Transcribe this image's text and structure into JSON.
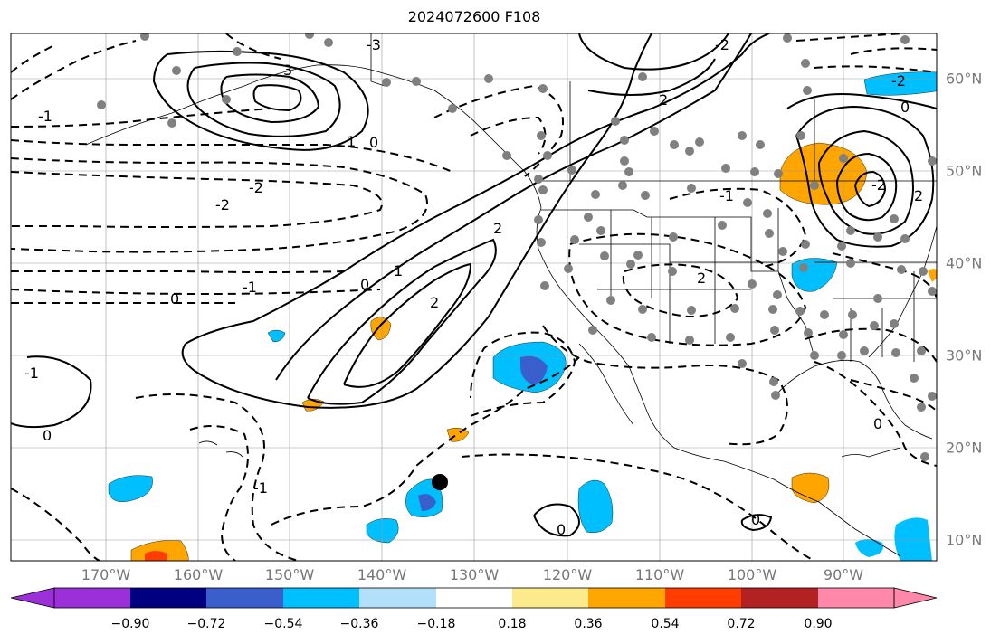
{
  "title": "2024072600 F108",
  "longitude_labels": [
    "170°W",
    "160°W",
    "150°W",
    "140°W",
    "130°W",
    "120°W",
    "110°W",
    "100°W",
    "90°W"
  ],
  "latitude_labels": [
    "60°N",
    "50°N",
    "40°N",
    "30°N",
    "20°N",
    "10°N"
  ],
  "colorbar": {
    "ticks": [
      "−0.90",
      "−0.72",
      "−0.54",
      "−0.36",
      "−0.18",
      "0.18",
      "0.36",
      "0.54",
      "0.72",
      "0.90"
    ],
    "colors": [
      "#9b30d9",
      "#000080",
      "#3a5fcd",
      "#00bfff",
      "#b2e0fb",
      "#ffffff",
      "#fdea8a",
      "#ffa500",
      "#ff3d00",
      "#b22222",
      "#ff88aa"
    ]
  },
  "contour_labels": [
    "-3",
    "-2",
    "-2",
    "-2",
    "-1",
    "-1",
    "-1",
    "0",
    "0",
    "0",
    "1",
    "2",
    "2",
    "3",
    "-2",
    "-1",
    "2",
    "2",
    "0",
    "1",
    "0",
    "0",
    "-1",
    "-2",
    "2",
    "0",
    "0"
  ],
  "fill_colors": {
    "pos_low": "#ffa500",
    "pos_mid": "#ff3d00",
    "neg_low": "#00bfff",
    "neg_mid": "#3a5fcd"
  }
}
